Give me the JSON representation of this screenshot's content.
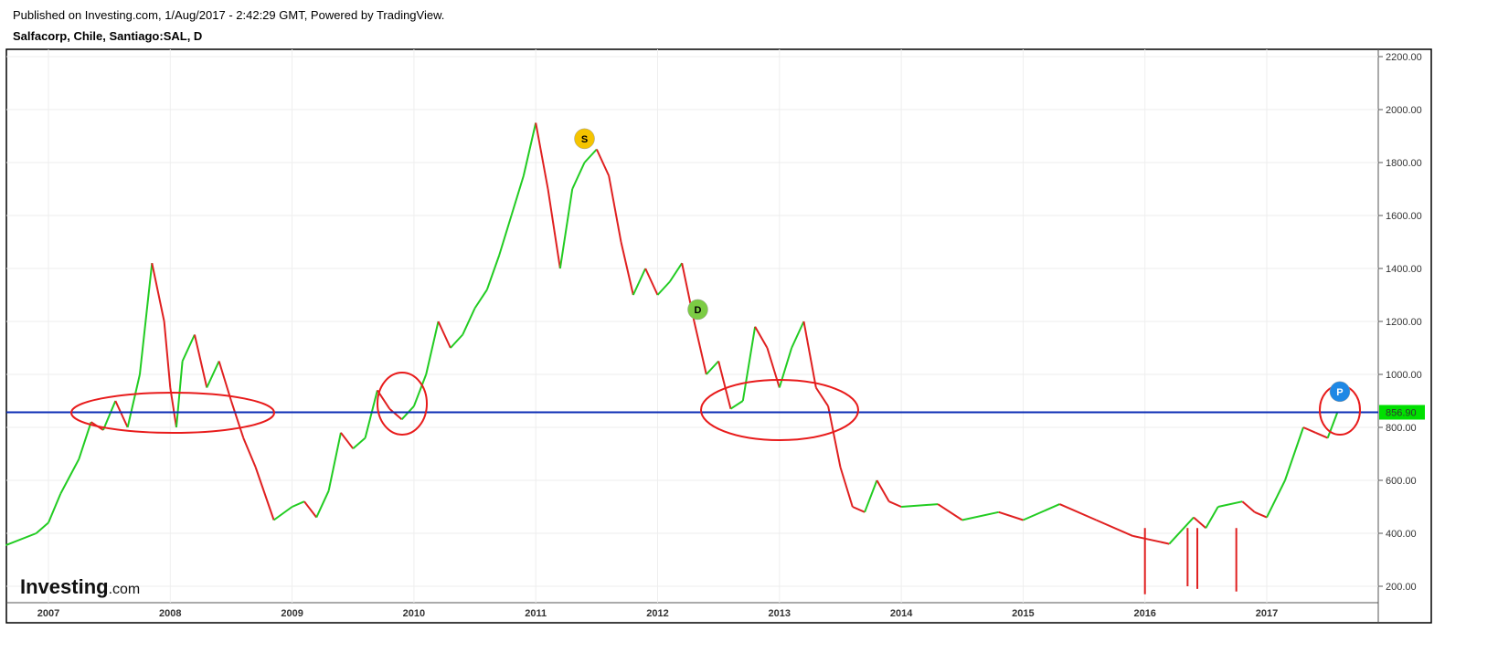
{
  "header": {
    "published": "Published on Investing.com, 1/Aug/2017 - 2:42:29 GMT, Powered by TradingView.",
    "symbol": "Salfacorp, Chile, Santiago:SAL, D"
  },
  "logo": {
    "brand": "Investing",
    "suffix": ".com"
  },
  "chart_data": {
    "type": "line",
    "title": "Salfacorp, Chile, Santiago:SAL, D",
    "ylim": [
      150,
      2230
    ],
    "y_ticks": [
      "200.00",
      "400.00",
      "600.00",
      "800.00",
      "1000.00",
      "1200.00",
      "1400.00",
      "1600.00",
      "1800.00",
      "2000.00",
      "2200.00"
    ],
    "y_tick_values": [
      200,
      400,
      600,
      800,
      1000,
      1200,
      1400,
      1600,
      1800,
      2000,
      2200
    ],
    "x_ticks": [
      "2007",
      "2008",
      "2009",
      "2010",
      "2011",
      "2012",
      "2013",
      "2014",
      "2015",
      "2016",
      "2017"
    ],
    "xlim": [
      2006.65,
      2017.9
    ],
    "grid": true,
    "last_price": {
      "value": 856.9,
      "label": "856.90",
      "color": "#00e000"
    },
    "horizontal_line": {
      "value": 856.9,
      "color": "#0d2db5"
    },
    "colors": {
      "up": "#22cc22",
      "down": "#e02020"
    },
    "series": [
      {
        "name": "SAL",
        "x": [
          2006.65,
          2006.9,
          2007.0,
          2007.1,
          2007.25,
          2007.35,
          2007.45,
          2007.55,
          2007.65,
          2007.75,
          2007.85,
          2007.95,
          2008.0,
          2008.05,
          2008.1,
          2008.2,
          2008.3,
          2008.4,
          2008.5,
          2008.6,
          2008.7,
          2008.85,
          2009.0,
          2009.1,
          2009.2,
          2009.3,
          2009.4,
          2009.5,
          2009.6,
          2009.7,
          2009.8,
          2009.9,
          2010.0,
          2010.1,
          2010.2,
          2010.3,
          2010.4,
          2010.5,
          2010.6,
          2010.7,
          2010.8,
          2010.9,
          2011.0,
          2011.1,
          2011.2,
          2011.3,
          2011.4,
          2011.5,
          2011.6,
          2011.7,
          2011.8,
          2011.9,
          2012.0,
          2012.1,
          2012.2,
          2012.3,
          2012.4,
          2012.5,
          2012.6,
          2012.7,
          2012.8,
          2012.9,
          2013.0,
          2013.1,
          2013.2,
          2013.3,
          2013.4,
          2013.5,
          2013.6,
          2013.7,
          2013.8,
          2013.9,
          2014.0,
          2014.3,
          2014.5,
          2014.8,
          2015.0,
          2015.3,
          2015.6,
          2015.9,
          2016.0,
          2016.2,
          2016.4,
          2016.5,
          2016.6,
          2016.8,
          2016.9,
          2017.0,
          2017.15,
          2017.3,
          2017.4,
          2017.5,
          2017.58
        ],
        "y": [
          355,
          400,
          440,
          550,
          680,
          820,
          790,
          900,
          800,
          1000,
          1420,
          1200,
          950,
          800,
          1050,
          1150,
          950,
          1050,
          900,
          760,
          650,
          450,
          500,
          520,
          460,
          560,
          780,
          720,
          760,
          940,
          870,
          830,
          880,
          1000,
          1200,
          1100,
          1150,
          1250,
          1320,
          1450,
          1600,
          1750,
          1950,
          1700,
          1400,
          1700,
          1800,
          1850,
          1750,
          1500,
          1300,
          1400,
          1300,
          1350,
          1420,
          1200,
          1000,
          1050,
          870,
          900,
          1180,
          1100,
          950,
          1100,
          1200,
          950,
          880,
          650,
          500,
          480,
          600,
          520,
          500,
          510,
          450,
          480,
          450,
          510,
          450,
          390,
          380,
          360,
          460,
          420,
          500,
          520,
          480,
          460,
          600,
          800,
          780,
          760,
          857
        ]
      }
    ],
    "low_spikes": [
      {
        "x": 2016.0,
        "low": 170
      },
      {
        "x": 2016.35,
        "low": 200
      },
      {
        "x": 2016.43,
        "low": 190
      },
      {
        "x": 2016.75,
        "low": 180
      }
    ],
    "annotations": [
      {
        "label": "S",
        "x": 2011.4,
        "y": 1890,
        "color": "#f5c400"
      },
      {
        "label": "D",
        "x": 2012.33,
        "y": 1245,
        "color": "#7ccc44"
      },
      {
        "label": "P",
        "x": 2017.6,
        "y": 935,
        "color": "#1e88e5"
      }
    ]
  }
}
